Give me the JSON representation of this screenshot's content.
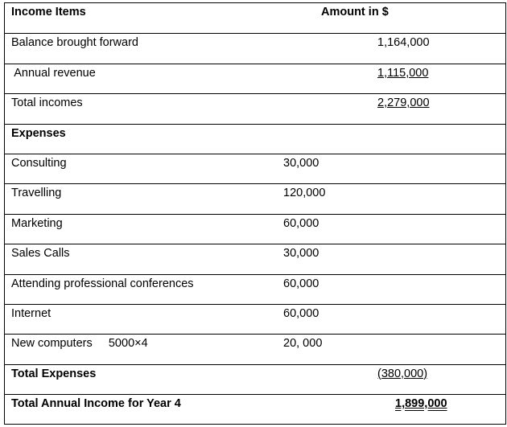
{
  "header": {
    "label": "Income Items",
    "amount": "Amount in $"
  },
  "income": [
    {
      "label": "Balance brought forward",
      "amount": "1,164,000",
      "underline": false
    },
    {
      "label": " Annual revenue",
      "amount": "1,115,000",
      "underline": true
    },
    {
      "label": "Total incomes",
      "amount": "2,279,000",
      "underline": true
    }
  ],
  "expenses_heading": "Expenses",
  "expenses": [
    {
      "label": "Consulting",
      "amount": "30,000"
    },
    {
      "label": "Travelling",
      "amount": "120,000"
    },
    {
      "label": "Marketing",
      "amount": "60,000"
    },
    {
      "label": "Sales Calls",
      "amount": "30,000"
    },
    {
      "label": "Attending professional conferences",
      "amount": "60,000"
    },
    {
      "label": "Internet",
      "amount": "60,000"
    },
    {
      "label": "New computers     5000×4",
      "amount": "20, 000"
    }
  ],
  "total_expenses": {
    "label": "Total Expenses",
    "amount": "(380,000)"
  },
  "total_annual": {
    "label": "Total Annual Income for Year 4",
    "amount": "1,899,000"
  }
}
